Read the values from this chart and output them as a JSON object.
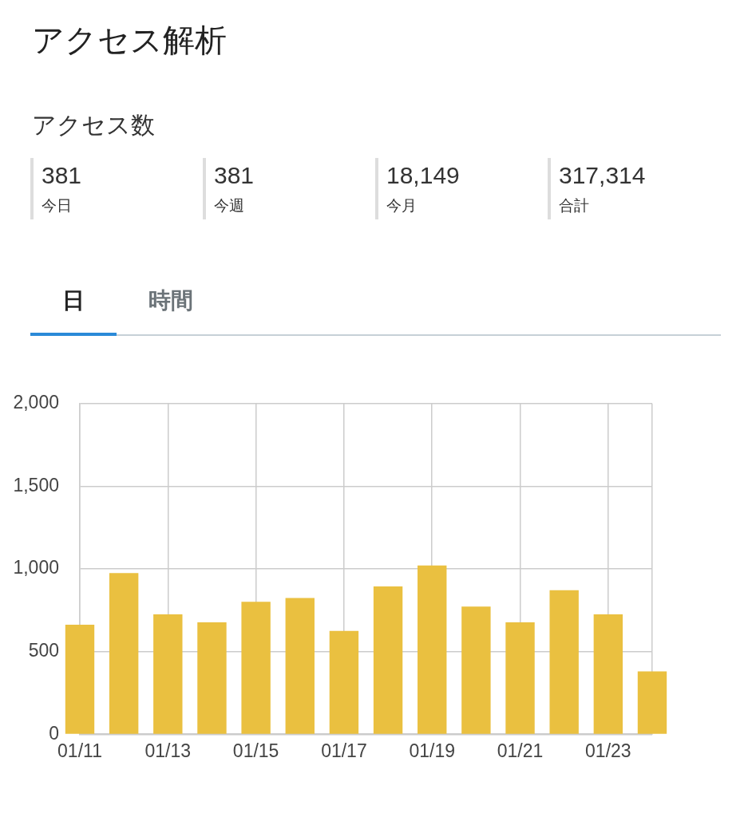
{
  "chart_data": [
    {
      "type": "other",
      "title": "アクセス解析",
      "subtitle": "アクセス数",
      "annotations": [
        "381",
        "今日",
        "381",
        "今週",
        "18,149",
        "今月",
        "317,314",
        "合計"
      ]
    },
    {
      "type": "bar",
      "annotations": [
        "日",
        "時間"
      ],
      "x": [
        "--01-11",
        "--01-12",
        "--01-13",
        "--01-14",
        "--01-15",
        "--01-16",
        "--01-17",
        "--01-18",
        "--01-19",
        "--01-20",
        "--01-21",
        "--01-22",
        "--01-23",
        "--01-24"
      ],
      "values": [
        663,
        975,
        726,
        677,
        802,
        824,
        625,
        894,
        1021,
        773,
        677,
        872,
        726,
        381
      ],
      "color": "#eac040",
      "xlim": [
        "--01-11",
        "--01-24"
      ],
      "xticks": [
        {
          "value": "--01-11",
          "label": "01/11"
        },
        {
          "value": "--01-13",
          "label": "01/13"
        },
        {
          "value": "--01-15",
          "label": "01/15"
        },
        {
          "value": "--01-17",
          "label": "01/17"
        },
        {
          "value": "--01-19",
          "label": "01/19"
        },
        {
          "value": "--01-21",
          "label": "01/21"
        },
        {
          "value": "--01-23",
          "label": "01/23"
        },
        {
          "value": "--01-24",
          "label": null
        }
      ],
      "ylim": [
        0,
        2000
      ],
      "yticks": [
        0,
        500,
        {
          "value": 1000,
          "label": "1,000"
        },
        {
          "value": 1500,
          "label": "1,500"
        },
        {
          "value": 2000,
          "label": "2,000"
        }
      ],
      "grid": true
    }
  ]
}
